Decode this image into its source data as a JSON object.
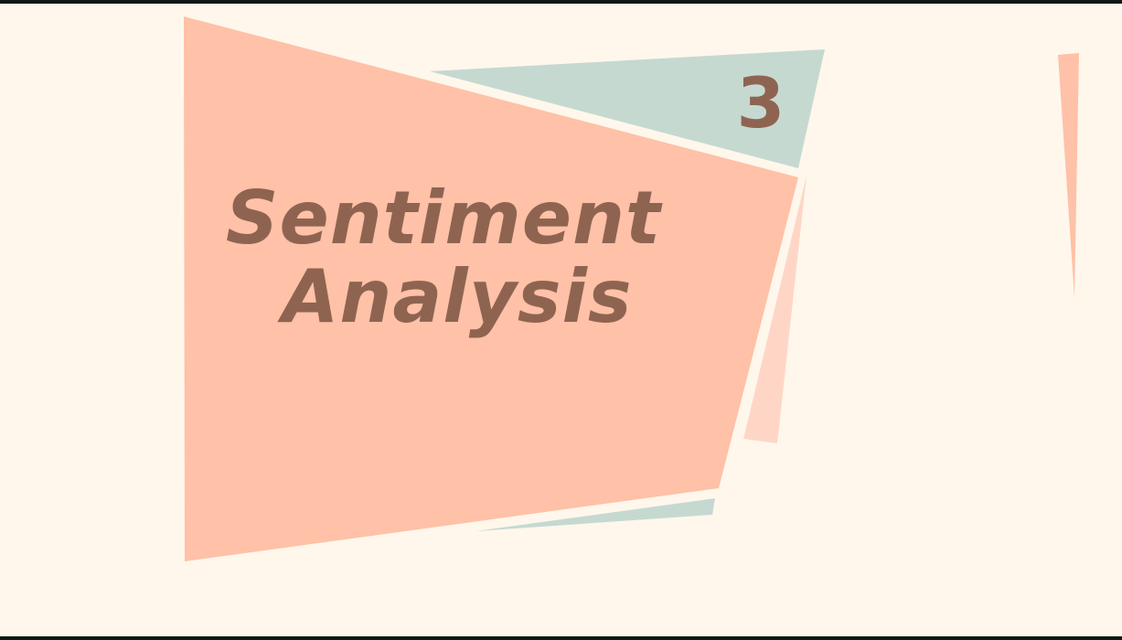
{
  "slide": {
    "section_number": "3",
    "title_line_1": "Sentiment",
    "title_line_2": "Analysis"
  },
  "colors": {
    "background": "#fff7ec",
    "frame": "#0b1a14",
    "salmon": "#ffc1a7",
    "salmon_light": "#ffd6c6",
    "sage": "#c5d9d1",
    "text": "#8e6451"
  }
}
